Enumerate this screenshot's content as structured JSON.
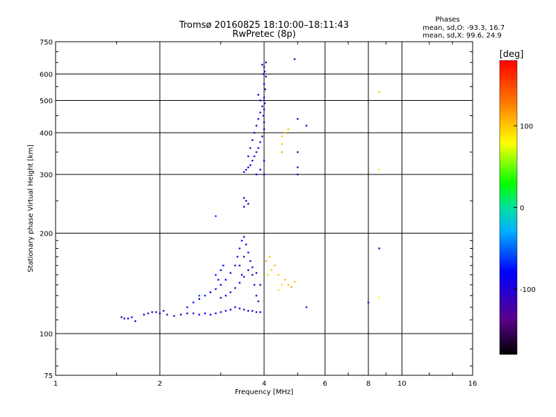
{
  "chart_data": {
    "type": "scatter",
    "title": "Tromsø 20160825 18:10:00–18:11:43",
    "subtitle": "RwPretec (8p)",
    "xlabel": "Frequency [MHz]",
    "ylabel": "Stationary phase Virtual Height [km]",
    "x_scale": "log",
    "y_scale": "log",
    "xlim": [
      1,
      16
    ],
    "ylim": [
      75,
      750
    ],
    "x_ticks": [
      1,
      2,
      4,
      6,
      8,
      10,
      16
    ],
    "x_tick_labels": [
      "1",
      "2",
      "4",
      "6",
      "8",
      "10",
      "16"
    ],
    "y_ticks": [
      75,
      100,
      200,
      300,
      400,
      500,
      600,
      750
    ],
    "y_tick_labels": [
      "75",
      "100",
      "200",
      "300",
      "400",
      "500",
      "600",
      "750"
    ],
    "grid": true,
    "colorbar": {
      "label": "[deg]",
      "range": [
        -180,
        180
      ],
      "ticks": [
        100,
        0,
        -100
      ],
      "tick_labels": [
        "100",
        "0",
        "-100"
      ]
    },
    "annotations": {
      "heading": "Phases",
      "line1": "mean, sd,O: -93.3, 16.7",
      "line2": "mean, sd,X:  99.6, 24.9"
    },
    "series": [
      {
        "points": [
          [
            1.55,
            112,
            -100
          ],
          [
            1.58,
            111,
            -110
          ],
          [
            1.62,
            111,
            -105
          ],
          [
            1.66,
            112,
            -100
          ],
          [
            1.7,
            109,
            -110
          ],
          [
            1.8,
            114,
            -100
          ],
          [
            1.85,
            115,
            -110
          ],
          [
            1.9,
            116,
            -100
          ],
          [
            1.95,
            116,
            -105
          ],
          [
            2.0,
            115,
            -100
          ],
          [
            2.05,
            117,
            -110
          ],
          [
            2.1,
            114,
            -100
          ],
          [
            2.2,
            113,
            -105
          ],
          [
            2.3,
            114,
            -100
          ],
          [
            2.4,
            115,
            -110
          ],
          [
            2.5,
            115,
            -100
          ],
          [
            2.6,
            114,
            -80
          ],
          [
            2.7,
            115,
            -75
          ],
          [
            2.8,
            114,
            -80
          ],
          [
            2.9,
            115,
            -90
          ],
          [
            3.0,
            116,
            -100
          ],
          [
            3.1,
            117,
            -110
          ],
          [
            3.2,
            118,
            -100
          ],
          [
            3.3,
            120,
            -105
          ],
          [
            3.4,
            119,
            -110
          ],
          [
            3.5,
            118,
            -110
          ],
          [
            3.6,
            117,
            -100
          ],
          [
            3.7,
            117,
            -105
          ],
          [
            3.8,
            116,
            -110
          ],
          [
            3.9,
            116,
            -105
          ],
          [
            2.4,
            120,
            -70
          ],
          [
            2.5,
            124,
            -75
          ],
          [
            2.6,
            127,
            -80
          ],
          [
            2.7,
            130,
            -70
          ],
          [
            2.8,
            133,
            -80
          ],
          [
            2.9,
            136,
            -90
          ],
          [
            3.0,
            140,
            -85
          ],
          [
            3.1,
            145,
            -100
          ],
          [
            3.2,
            152,
            -95
          ],
          [
            3.3,
            160,
            -110
          ],
          [
            3.35,
            170,
            -105
          ],
          [
            3.4,
            180,
            -110
          ],
          [
            3.45,
            190,
            -100
          ],
          [
            3.5,
            195,
            -105
          ],
          [
            3.0,
            128,
            -110
          ],
          [
            3.1,
            130,
            -100
          ],
          [
            3.2,
            133,
            -105
          ],
          [
            3.3,
            137,
            -110
          ],
          [
            3.4,
            142,
            -100
          ],
          [
            3.5,
            148,
            -110
          ],
          [
            3.6,
            155,
            -100
          ],
          [
            3.7,
            158,
            -105
          ],
          [
            3.8,
            152,
            -110
          ],
          [
            3.9,
            140,
            -100
          ],
          [
            3.4,
            160,
            -100
          ],
          [
            3.45,
            150,
            -110
          ],
          [
            3.5,
            170,
            -95
          ],
          [
            3.55,
            185,
            -110
          ],
          [
            3.6,
            175,
            -100
          ],
          [
            3.65,
            165,
            -105
          ],
          [
            3.7,
            150,
            -110
          ],
          [
            3.75,
            140,
            -100
          ],
          [
            3.8,
            130,
            -105
          ],
          [
            3.85,
            125,
            -100
          ],
          [
            2.9,
            150,
            -70
          ],
          [
            3.0,
            155,
            -80
          ],
          [
            3.05,
            160,
            -75
          ],
          [
            2.95,
            145,
            -90
          ],
          [
            2.6,
            130,
            -60
          ],
          [
            3.5,
            255,
            -100
          ],
          [
            3.55,
            250,
            -105
          ],
          [
            3.6,
            245,
            -110
          ],
          [
            3.5,
            240,
            -100
          ],
          [
            3.5,
            305,
            -100
          ],
          [
            3.55,
            310,
            -105
          ],
          [
            3.6,
            315,
            -110
          ],
          [
            3.65,
            320,
            -100
          ],
          [
            3.7,
            330,
            -105
          ],
          [
            3.75,
            340,
            -100
          ],
          [
            3.8,
            350,
            -110
          ],
          [
            3.85,
            360,
            -100
          ],
          [
            3.9,
            375,
            -105
          ],
          [
            3.95,
            390,
            -110
          ],
          [
            4.0,
            410,
            -100
          ],
          [
            4.0,
            430,
            -105
          ],
          [
            3.98,
            450,
            -110
          ],
          [
            4.0,
            470,
            -100
          ],
          [
            4.02,
            490,
            -105
          ],
          [
            4.0,
            510,
            -100
          ],
          [
            4.03,
            540,
            -110
          ],
          [
            4.0,
            560,
            -100
          ],
          [
            4.05,
            590,
            -105
          ],
          [
            4.02,
            610,
            -100
          ],
          [
            4.0,
            630,
            -110
          ],
          [
            4.05,
            650,
            -100
          ],
          [
            3.95,
            640,
            -105
          ],
          [
            3.98,
            600,
            -110
          ],
          [
            3.6,
            340,
            -100
          ],
          [
            3.65,
            360,
            -110
          ],
          [
            3.7,
            380,
            -100
          ],
          [
            3.75,
            400,
            -105
          ],
          [
            3.8,
            420,
            -100
          ],
          [
            3.85,
            440,
            -110
          ],
          [
            3.9,
            460,
            -100
          ],
          [
            3.95,
            480,
            -105
          ],
          [
            3.9,
            500,
            -100
          ],
          [
            3.85,
            520,
            -110
          ],
          [
            4.0,
            330,
            -100
          ],
          [
            3.9,
            310,
            -105
          ],
          [
            4.0,
            300,
            -110
          ],
          [
            3.8,
            300,
            -100
          ],
          [
            4.5,
            390,
            100
          ],
          [
            4.5,
            370,
            95
          ],
          [
            4.6,
            400,
            105
          ],
          [
            4.7,
            410,
            100
          ],
          [
            4.5,
            350,
            110
          ],
          [
            4.4,
            150,
            100
          ],
          [
            4.5,
            140,
            95
          ],
          [
            4.6,
            145,
            105
          ],
          [
            4.7,
            140,
            100
          ],
          [
            4.8,
            138,
            110
          ],
          [
            4.9,
            143,
            100
          ],
          [
            4.4,
            135,
            90
          ],
          [
            4.3,
            160,
            105
          ],
          [
            4.2,
            155,
            100
          ],
          [
            4.1,
            150,
            95
          ],
          [
            4.05,
            165,
            110
          ],
          [
            4.15,
            170,
            100
          ],
          [
            5.0,
            440,
            -100
          ],
          [
            5.0,
            350,
            -110
          ],
          [
            5.0,
            315,
            -105
          ],
          [
            5.0,
            300,
            -100
          ],
          [
            4.9,
            665,
            -110
          ],
          [
            5.3,
            420,
            -100
          ],
          [
            5.3,
            120,
            -70
          ],
          [
            8.0,
            124,
            -110
          ],
          [
            8.6,
            530,
            60
          ],
          [
            8.6,
            310,
            70
          ],
          [
            8.6,
            180,
            -110
          ],
          [
            8.6,
            128,
            80
          ],
          [
            2.9,
            225,
            -60
          ]
        ]
      }
    ]
  }
}
